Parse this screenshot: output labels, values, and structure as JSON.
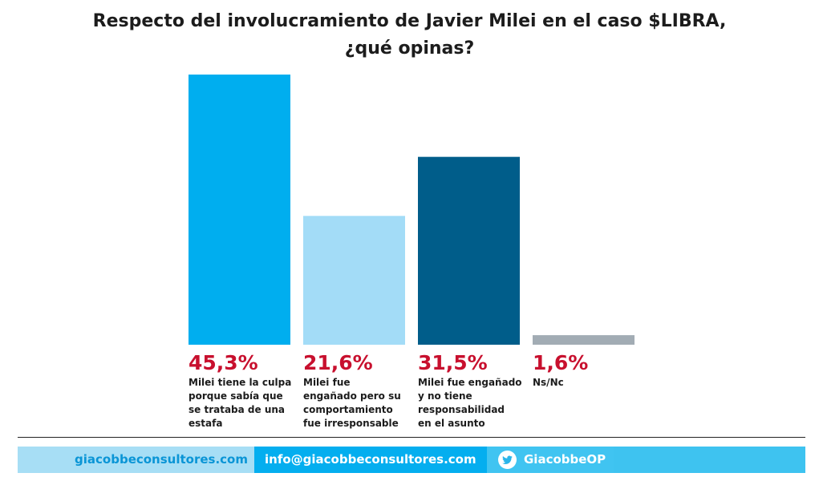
{
  "chart_data": {
    "type": "bar",
    "title": "Respecto del involucramiento de Javier Milei en el caso $LIBRA, ¿qué opinas?",
    "title_lines": [
      "Respecto del involucramiento de Javier Milei en el caso $LIBRA,",
      "¿qué opinas?"
    ],
    "categories": [
      "Milei tiene la culpa porque sabía que se trataba de una estafa",
      "Milei fue engañado pero su comportamiento fue irresponsable",
      "Milei fue engañado y no tiene responsabilidad en el asunto",
      "Ns/Nc"
    ],
    "category_lines": [
      [
        "Milei tiene la culpa",
        "porque sabía que",
        "se trataba de una",
        "estafa"
      ],
      [
        "Milei fue",
        "engañado pero su",
        "comportamiento",
        "fue irresponsable"
      ],
      [
        "Milei fue engañado",
        "y no tiene",
        "responsabilidad",
        "en el asunto"
      ],
      [
        "Ns/Nc"
      ]
    ],
    "values": [
      45.3,
      21.6,
      31.5,
      1.6
    ],
    "value_labels": [
      "45,3%",
      "21,6%",
      "31,5%",
      "1,6%"
    ],
    "colors": [
      "#00aeef",
      "#a3dcf7",
      "#005d8a",
      "#a2acb4"
    ],
    "value_label_color": "#c8102e",
    "xlabel": "",
    "ylabel": "",
    "ylim": [
      0,
      45.3
    ],
    "grid": false,
    "legend": "none"
  },
  "footer": {
    "website": "giacobbeconsultores.com",
    "email": "info@giacobbeconsultores.com",
    "twitter": "GiacobbeOP",
    "twitter_icon": "twitter-bird-icon"
  }
}
